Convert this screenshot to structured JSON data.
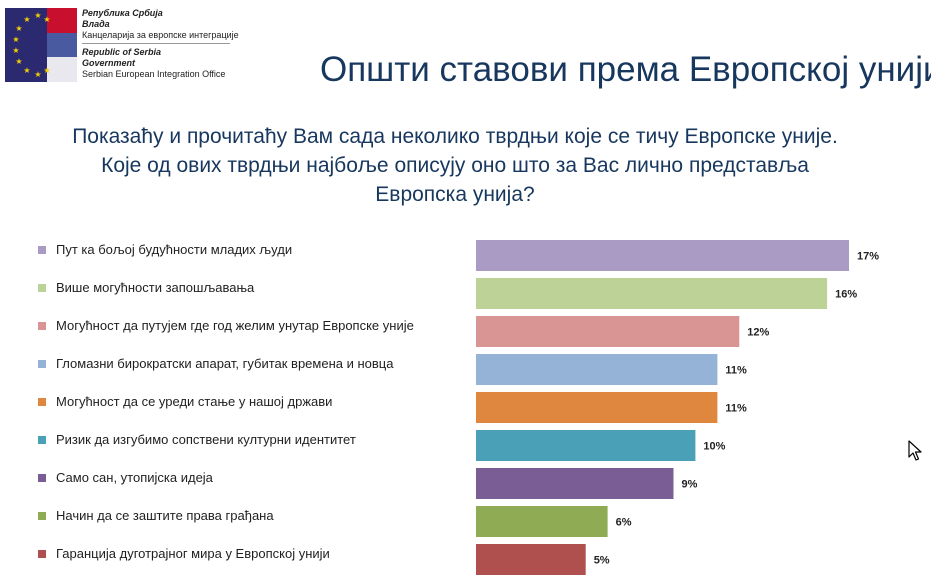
{
  "header": {
    "org_lines": [
      "Република Србија",
      "Влада",
      "Канцеларија за европске интеграције",
      "Republic of Serbia",
      "Government",
      "Serbian European Integration Office"
    ],
    "title": "Општи ставови према Европској унији"
  },
  "question": "Показаћу и прочитаћу Вам сада неколико тврдњи које се тичу Европске уније. Које од ових тврдњи најбоље описују оно што за Вас лично представља Европска унија?",
  "chart_data": {
    "type": "bar",
    "orientation": "horizontal",
    "title": "Општи ставови према Европској унији",
    "categories": [
      "Пут ка бољој будућности младих људи",
      "Више могућности запошљавања",
      "Могућност да путујем где год желим унутар Европске уније",
      "Гломазни бирократски апарат, губитак времена и новца",
      "Могућност да се уреди стање у нашој држави",
      "Ризик да изгубимо сопствени културни идентитет",
      "Само сан, утопијска идеја",
      "Начин да се заштите права грађана",
      "Гаранција дуготрајног мира у Европској унији"
    ],
    "values": [
      17,
      16,
      12,
      11,
      11,
      10,
      9,
      6,
      5
    ],
    "value_labels": [
      "17%",
      "16%",
      "12%",
      "11%",
      "11%",
      "10%",
      "9%",
      "6%",
      "5%"
    ],
    "colors": [
      "#a99bc4",
      "#bcd296",
      "#d99594",
      "#95b3d7",
      "#e0873f",
      "#4aa0b6",
      "#7b5d96",
      "#8fac54",
      "#b0504e"
    ],
    "unit": "%",
    "xlim": [
      0,
      17
    ],
    "grid": false,
    "legend": "left"
  }
}
